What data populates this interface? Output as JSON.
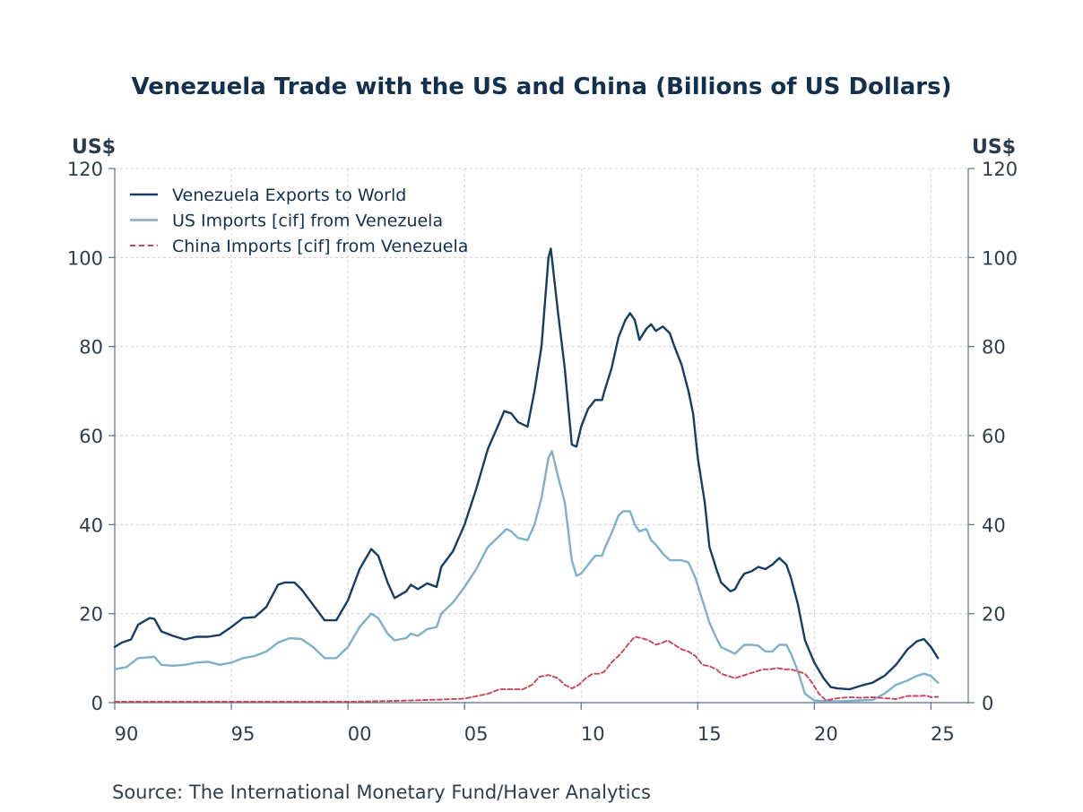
{
  "chart_data": {
    "type": "line",
    "title": "Venezuela Trade with the US and China (Billions of US Dollars)",
    "ylabel_left": "US$",
    "ylabel_right": "US$",
    "ylim": [
      0,
      120
    ],
    "yticks": [
      0,
      20,
      40,
      60,
      80,
      100,
      120
    ],
    "xlim": [
      1990.0,
      2026.6
    ],
    "xticks": [
      {
        "value": 1990,
        "label": "90"
      },
      {
        "value": 1995,
        "label": "95"
      },
      {
        "value": 2000,
        "label": "00"
      },
      {
        "value": 2005,
        "label": "05"
      },
      {
        "value": 2010,
        "label": "10"
      },
      {
        "value": 2015,
        "label": "15"
      },
      {
        "value": 2020,
        "label": "20"
      },
      {
        "value": 2025,
        "label": "25"
      }
    ],
    "grid": true,
    "legend_position": "top-left",
    "source": "Source:  The International Monetary Fund/Haver Analytics",
    "series": [
      {
        "name": "Venezuela Exports to World",
        "color": "#173d60",
        "style": "solid",
        "points": [
          [
            1990,
            12.5
          ],
          [
            1990.3,
            13.5
          ],
          [
            1990.7,
            14.2
          ],
          [
            1991,
            17.5
          ],
          [
            1991.5,
            19
          ],
          [
            1991.7,
            18.8
          ],
          [
            1992,
            16
          ],
          [
            1992.5,
            15
          ],
          [
            1993,
            14.2
          ],
          [
            1993.5,
            14.8
          ],
          [
            1994,
            14.8
          ],
          [
            1994.5,
            15.2
          ],
          [
            1995,
            17
          ],
          [
            1995.5,
            19
          ],
          [
            1996,
            19.2
          ],
          [
            1996.5,
            21.5
          ],
          [
            1997,
            26.5
          ],
          [
            1997.3,
            27
          ],
          [
            1997.7,
            27
          ],
          [
            1998,
            25.5
          ],
          [
            1998.5,
            22
          ],
          [
            1999,
            18.5
          ],
          [
            1999.5,
            18.5
          ],
          [
            2000,
            23
          ],
          [
            2000.5,
            30
          ],
          [
            2001,
            34.5
          ],
          [
            2001.3,
            33
          ],
          [
            2001.7,
            27
          ],
          [
            2002,
            23.5
          ],
          [
            2002.5,
            25
          ],
          [
            2002.7,
            26.5
          ],
          [
            2003,
            25.5
          ],
          [
            2003.4,
            26.8
          ],
          [
            2003.8,
            26
          ],
          [
            2004,
            30.5
          ],
          [
            2004.5,
            34
          ],
          [
            2005,
            40
          ],
          [
            2005.5,
            48
          ],
          [
            2006,
            57
          ],
          [
            2006.5,
            63
          ],
          [
            2006.7,
            65.5
          ],
          [
            2007,
            65
          ],
          [
            2007.3,
            63
          ],
          [
            2007.7,
            62
          ],
          [
            2008,
            70
          ],
          [
            2008.3,
            80
          ],
          [
            2008.6,
            100
          ],
          [
            2008.7,
            102
          ],
          [
            2009,
            88
          ],
          [
            2009.3,
            75
          ],
          [
            2009.6,
            58
          ],
          [
            2009.8,
            57.5
          ],
          [
            2010,
            62
          ],
          [
            2010.3,
            66
          ],
          [
            2010.6,
            68
          ],
          [
            2010.9,
            68
          ],
          [
            2011,
            70
          ],
          [
            2011.3,
            75
          ],
          [
            2011.6,
            82
          ],
          [
            2011.9,
            86
          ],
          [
            2012.1,
            87.5
          ],
          [
            2012.3,
            86
          ],
          [
            2012.5,
            81.5
          ],
          [
            2012.8,
            84
          ],
          [
            2013,
            85
          ],
          [
            2013.2,
            83.5
          ],
          [
            2013.5,
            84.5
          ],
          [
            2013.8,
            83
          ],
          [
            2014,
            80
          ],
          [
            2014.3,
            76
          ],
          [
            2014.6,
            70
          ],
          [
            2014.8,
            65
          ],
          [
            2015,
            55
          ],
          [
            2015.3,
            45
          ],
          [
            2015.5,
            35
          ],
          [
            2015.8,
            30
          ],
          [
            2016,
            27
          ],
          [
            2016.4,
            25
          ],
          [
            2016.6,
            25.5
          ],
          [
            2016.8,
            27.5
          ],
          [
            2017,
            29
          ],
          [
            2017.3,
            29.5
          ],
          [
            2017.6,
            30.5
          ],
          [
            2017.9,
            30
          ],
          [
            2018.2,
            31
          ],
          [
            2018.5,
            32.5
          ],
          [
            2018.8,
            31
          ],
          [
            2019,
            28
          ],
          [
            2019.3,
            22
          ],
          [
            2019.6,
            14
          ],
          [
            2020,
            9
          ],
          [
            2020.4,
            5.5
          ],
          [
            2020.7,
            3.5
          ],
          [
            2021,
            3.2
          ],
          [
            2021.5,
            3
          ],
          [
            2022,
            3.8
          ],
          [
            2022.5,
            4.5
          ],
          [
            2023,
            6
          ],
          [
            2023.5,
            8.5
          ],
          [
            2024,
            12
          ],
          [
            2024.4,
            13.8
          ],
          [
            2024.7,
            14.3
          ],
          [
            2025,
            12.5
          ],
          [
            2025.3,
            10
          ]
        ]
      },
      {
        "name": "US Imports [cif] from Venezuela",
        "color": "#7fb0c8",
        "style": "solid",
        "points": [
          [
            1990,
            7.5
          ],
          [
            1990.5,
            8
          ],
          [
            1991,
            10
          ],
          [
            1991.5,
            10.2
          ],
          [
            1991.7,
            10.3
          ],
          [
            1992,
            8.5
          ],
          [
            1992.5,
            8.3
          ],
          [
            1993,
            8.5
          ],
          [
            1993.5,
            9
          ],
          [
            1994,
            9.2
          ],
          [
            1994.5,
            8.5
          ],
          [
            1995,
            9
          ],
          [
            1995.5,
            10
          ],
          [
            1996,
            10.5
          ],
          [
            1996.5,
            11.5
          ],
          [
            1997,
            13.5
          ],
          [
            1997.5,
            14.5
          ],
          [
            1998,
            14.3
          ],
          [
            1998.5,
            12.5
          ],
          [
            1999,
            10
          ],
          [
            1999.5,
            10
          ],
          [
            2000,
            12.5
          ],
          [
            2000.5,
            17
          ],
          [
            2001,
            20
          ],
          [
            2001.3,
            19
          ],
          [
            2001.7,
            15.5
          ],
          [
            2002,
            14
          ],
          [
            2002.5,
            14.5
          ],
          [
            2002.7,
            15.5
          ],
          [
            2003,
            15
          ],
          [
            2003.4,
            16.5
          ],
          [
            2003.8,
            17
          ],
          [
            2004,
            20
          ],
          [
            2004.5,
            22.5
          ],
          [
            2005,
            26
          ],
          [
            2005.5,
            30
          ],
          [
            2006,
            35
          ],
          [
            2006.5,
            37.5
          ],
          [
            2006.8,
            39
          ],
          [
            2007,
            38.5
          ],
          [
            2007.3,
            37
          ],
          [
            2007.7,
            36.5
          ],
          [
            2008,
            40
          ],
          [
            2008.3,
            46
          ],
          [
            2008.6,
            55
          ],
          [
            2008.75,
            56.5
          ],
          [
            2009,
            51
          ],
          [
            2009.3,
            45
          ],
          [
            2009.6,
            32
          ],
          [
            2009.8,
            28.5
          ],
          [
            2010,
            29
          ],
          [
            2010.3,
            31
          ],
          [
            2010.6,
            33
          ],
          [
            2010.9,
            33
          ],
          [
            2011,
            34.5
          ],
          [
            2011.3,
            38
          ],
          [
            2011.6,
            42
          ],
          [
            2011.8,
            43
          ],
          [
            2012.1,
            43
          ],
          [
            2012.3,
            40
          ],
          [
            2012.5,
            38.5
          ],
          [
            2012.8,
            39
          ],
          [
            2013,
            36.5
          ],
          [
            2013.2,
            35.5
          ],
          [
            2013.5,
            33.5
          ],
          [
            2013.8,
            32
          ],
          [
            2014,
            32
          ],
          [
            2014.3,
            32
          ],
          [
            2014.6,
            31.5
          ],
          [
            2014.9,
            28
          ],
          [
            2015.2,
            23
          ],
          [
            2015.5,
            18
          ],
          [
            2015.8,
            14.5
          ],
          [
            2016,
            12.5
          ],
          [
            2016.4,
            11.5
          ],
          [
            2016.6,
            11
          ],
          [
            2016.8,
            12
          ],
          [
            2017,
            13
          ],
          [
            2017.3,
            13
          ],
          [
            2017.6,
            12.8
          ],
          [
            2017.9,
            11.5
          ],
          [
            2018.2,
            11.5
          ],
          [
            2018.5,
            13
          ],
          [
            2018.8,
            13
          ],
          [
            2019,
            11
          ],
          [
            2019.3,
            7
          ],
          [
            2019.6,
            2
          ],
          [
            2020,
            0.5
          ],
          [
            2020.5,
            0.3
          ],
          [
            2021,
            0.3
          ],
          [
            2021.5,
            0.4
          ],
          [
            2022,
            0.5
          ],
          [
            2022.5,
            0.6
          ],
          [
            2023,
            2
          ],
          [
            2023.5,
            4
          ],
          [
            2024,
            5
          ],
          [
            2024.4,
            6
          ],
          [
            2024.7,
            6.5
          ],
          [
            2025,
            6
          ],
          [
            2025.3,
            4.5
          ]
        ]
      },
      {
        "name": "China Imports [cif] from Venezuela",
        "color": "#c8465a",
        "style": "dashed",
        "points": [
          [
            1990,
            0.2
          ],
          [
            1995,
            0.2
          ],
          [
            2000,
            0.2
          ],
          [
            2002,
            0.4
          ],
          [
            2004,
            0.7
          ],
          [
            2005,
            0.9
          ],
          [
            2006,
            2
          ],
          [
            2006.5,
            3
          ],
          [
            2007,
            3
          ],
          [
            2007.5,
            3
          ],
          [
            2007.9,
            4
          ],
          [
            2008.2,
            5.8
          ],
          [
            2008.6,
            6.2
          ],
          [
            2009,
            5.5
          ],
          [
            2009.3,
            4
          ],
          [
            2009.6,
            3.2
          ],
          [
            2009.9,
            4
          ],
          [
            2010.2,
            5.5
          ],
          [
            2010.5,
            6.5
          ],
          [
            2010.8,
            6.5
          ],
          [
            2011,
            7
          ],
          [
            2011.3,
            9
          ],
          [
            2011.7,
            11
          ],
          [
            2012,
            13
          ],
          [
            2012.3,
            14.8
          ],
          [
            2012.6,
            14.5
          ],
          [
            2012.9,
            14
          ],
          [
            2013.2,
            13
          ],
          [
            2013.5,
            13.5
          ],
          [
            2013.7,
            14
          ],
          [
            2014,
            13
          ],
          [
            2014.3,
            12
          ],
          [
            2014.6,
            11.5
          ],
          [
            2014.9,
            10.5
          ],
          [
            2015.2,
            8.5
          ],
          [
            2015.5,
            8.2
          ],
          [
            2015.8,
            7.5
          ],
          [
            2016,
            6.5
          ],
          [
            2016.3,
            6
          ],
          [
            2016.6,
            5.5
          ],
          [
            2016.9,
            6
          ],
          [
            2017.2,
            6.5
          ],
          [
            2017.5,
            7
          ],
          [
            2017.8,
            7.5
          ],
          [
            2018.1,
            7.5
          ],
          [
            2018.4,
            7.8
          ],
          [
            2018.7,
            7.5
          ],
          [
            2019,
            7.5
          ],
          [
            2019.3,
            7
          ],
          [
            2019.6,
            6.5
          ],
          [
            2019.9,
            4.5
          ],
          [
            2020.2,
            2
          ],
          [
            2020.5,
            0.5
          ],
          [
            2021,
            1
          ],
          [
            2021.5,
            1.2
          ],
          [
            2022,
            1.1
          ],
          [
            2022.5,
            1.2
          ],
          [
            2023,
            1
          ],
          [
            2023.5,
            0.8
          ],
          [
            2024,
            1.5
          ],
          [
            2024.5,
            1.5
          ],
          [
            2024.8,
            1.6
          ],
          [
            2025,
            1.2
          ],
          [
            2025.3,
            1.3
          ]
        ]
      }
    ]
  }
}
